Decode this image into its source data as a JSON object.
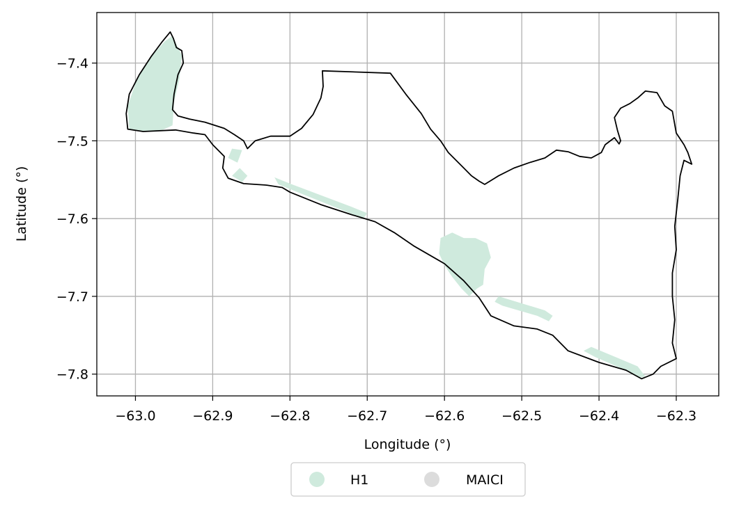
{
  "chart_data": {
    "type": "map",
    "xlabel": "Longitude (°)",
    "ylabel": "Latitude (°)",
    "xlim": [
      -63.05,
      -62.245
    ],
    "ylim": [
      -7.828,
      -7.335
    ],
    "x_ticks": [
      -63.0,
      -62.9,
      -62.8,
      -62.7,
      -62.6,
      -62.5,
      -62.4,
      -62.3
    ],
    "x_tick_labels": [
      "−63.0",
      "−62.9",
      "−62.8",
      "−62.7",
      "−62.6",
      "−62.5",
      "−62.4",
      "−62.3"
    ],
    "y_ticks": [
      -7.4,
      -7.5,
      -7.6,
      -7.7,
      -7.8
    ],
    "y_tick_labels": [
      "−7.4",
      "−7.5",
      "−7.6",
      "−7.7",
      "−7.8"
    ],
    "grid": true,
    "legend_position": "bottom-center-outside",
    "legend": [
      {
        "name": "H1",
        "color": "#cfeadd"
      },
      {
        "name": "MAICI",
        "color": "#dcdcdc"
      }
    ],
    "boundary_color": "#000000",
    "boundary": [
      [
        -63.01,
        -7.485
      ],
      [
        -63.012,
        -7.465
      ],
      [
        -63.008,
        -7.44
      ],
      [
        -62.995,
        -7.415
      ],
      [
        -62.98,
        -7.392
      ],
      [
        -62.965,
        -7.372
      ],
      [
        -62.955,
        -7.36
      ],
      [
        -62.951,
        -7.368
      ],
      [
        -62.947,
        -7.38
      ],
      [
        -62.94,
        -7.384
      ],
      [
        -62.938,
        -7.4
      ],
      [
        -62.945,
        -7.415
      ],
      [
        -62.95,
        -7.44
      ],
      [
        -62.952,
        -7.46
      ],
      [
        -62.945,
        -7.468
      ],
      [
        -62.93,
        -7.472
      ],
      [
        -62.91,
        -7.476
      ],
      [
        -62.885,
        -7.484
      ],
      [
        -62.872,
        -7.492
      ],
      [
        -62.86,
        -7.5
      ],
      [
        -62.855,
        -7.51
      ],
      [
        -62.845,
        -7.5
      ],
      [
        -62.825,
        -7.494
      ],
      [
        -62.8,
        -7.494
      ],
      [
        -62.785,
        -7.484
      ],
      [
        -62.77,
        -7.466
      ],
      [
        -62.76,
        -7.445
      ],
      [
        -62.757,
        -7.43
      ],
      [
        -62.758,
        -7.41
      ],
      [
        -62.67,
        -7.413
      ],
      [
        -62.65,
        -7.44
      ],
      [
        -62.63,
        -7.465
      ],
      [
        -62.618,
        -7.485
      ],
      [
        -62.605,
        -7.5
      ],
      [
        -62.595,
        -7.515
      ],
      [
        -62.585,
        -7.525
      ],
      [
        -62.575,
        -7.535
      ],
      [
        -62.565,
        -7.545
      ],
      [
        -62.555,
        -7.552
      ],
      [
        -62.548,
        -7.556
      ],
      [
        -62.53,
        -7.545
      ],
      [
        -62.51,
        -7.535
      ],
      [
        -62.49,
        -7.528
      ],
      [
        -62.47,
        -7.522
      ],
      [
        -62.455,
        -7.512
      ],
      [
        -62.44,
        -7.514
      ],
      [
        -62.425,
        -7.52
      ],
      [
        -62.41,
        -7.522
      ],
      [
        -62.397,
        -7.515
      ],
      [
        -62.392,
        -7.505
      ],
      [
        -62.38,
        -7.496
      ],
      [
        -62.374,
        -7.504
      ],
      [
        -62.372,
        -7.5
      ],
      [
        -62.376,
        -7.487
      ],
      [
        -62.38,
        -7.47
      ],
      [
        -62.372,
        -7.458
      ],
      [
        -62.36,
        -7.452
      ],
      [
        -62.35,
        -7.445
      ],
      [
        -62.34,
        -7.436
      ],
      [
        -62.325,
        -7.438
      ],
      [
        -62.315,
        -7.455
      ],
      [
        -62.305,
        -7.462
      ],
      [
        -62.3,
        -7.49
      ],
      [
        -62.29,
        -7.505
      ],
      [
        -62.285,
        -7.515
      ],
      [
        -62.28,
        -7.53
      ],
      [
        -62.29,
        -7.525
      ],
      [
        -62.295,
        -7.545
      ],
      [
        -62.298,
        -7.575
      ],
      [
        -62.302,
        -7.61
      ],
      [
        -62.3,
        -7.64
      ],
      [
        -62.305,
        -7.67
      ],
      [
        -62.305,
        -7.7
      ],
      [
        -62.302,
        -7.73
      ],
      [
        -62.305,
        -7.76
      ],
      [
        -62.3,
        -7.78
      ],
      [
        -62.32,
        -7.79
      ],
      [
        -62.33,
        -7.8
      ],
      [
        -62.345,
        -7.806
      ],
      [
        -62.365,
        -7.795
      ],
      [
        -62.4,
        -7.785
      ],
      [
        -62.44,
        -7.77
      ],
      [
        -62.46,
        -7.75
      ],
      [
        -62.48,
        -7.742
      ],
      [
        -62.51,
        -7.738
      ],
      [
        -62.54,
        -7.725
      ],
      [
        -62.555,
        -7.702
      ],
      [
        -62.575,
        -7.68
      ],
      [
        -62.6,
        -7.658
      ],
      [
        -62.64,
        -7.635
      ],
      [
        -62.665,
        -7.618
      ],
      [
        -62.69,
        -7.604
      ],
      [
        -62.72,
        -7.595
      ],
      [
        -62.76,
        -7.582
      ],
      [
        -62.8,
        -7.566
      ],
      [
        -62.81,
        -7.56
      ],
      [
        -62.83,
        -7.557
      ],
      [
        -62.86,
        -7.555
      ],
      [
        -62.88,
        -7.548
      ],
      [
        -62.887,
        -7.535
      ],
      [
        -62.885,
        -7.52
      ],
      [
        -62.9,
        -7.505
      ],
      [
        -62.91,
        -7.492
      ],
      [
        -62.925,
        -7.49
      ],
      [
        -62.948,
        -7.486
      ],
      [
        -62.99,
        -7.488
      ],
      [
        -63.01,
        -7.485
      ]
    ],
    "h1_regions": [
      [
        [
          -63.008,
          -7.485
        ],
        [
          -63.01,
          -7.455
        ],
        [
          -62.998,
          -7.42
        ],
        [
          -62.98,
          -7.392
        ],
        [
          -62.962,
          -7.372
        ],
        [
          -62.952,
          -7.365
        ],
        [
          -62.945,
          -7.38
        ],
        [
          -62.94,
          -7.39
        ],
        [
          -62.943,
          -7.42
        ],
        [
          -62.95,
          -7.45
        ],
        [
          -62.952,
          -7.48
        ],
        [
          -62.965,
          -7.486
        ],
        [
          -62.99,
          -7.488
        ]
      ],
      [
        [
          -62.605,
          -7.625
        ],
        [
          -62.59,
          -7.618
        ],
        [
          -62.575,
          -7.625
        ],
        [
          -62.56,
          -7.625
        ],
        [
          -62.545,
          -7.632
        ],
        [
          -62.54,
          -7.65
        ],
        [
          -62.548,
          -7.665
        ],
        [
          -62.55,
          -7.685
        ],
        [
          -62.558,
          -7.69
        ],
        [
          -62.568,
          -7.7
        ],
        [
          -62.578,
          -7.69
        ],
        [
          -62.59,
          -7.675
        ],
        [
          -62.6,
          -7.66
        ],
        [
          -62.607,
          -7.645
        ]
      ],
      [
        [
          -62.82,
          -7.547
        ],
        [
          -62.8,
          -7.555
        ],
        [
          -62.72,
          -7.585
        ],
        [
          -62.7,
          -7.593
        ],
        [
          -62.705,
          -7.6
        ],
        [
          -62.725,
          -7.592
        ],
        [
          -62.8,
          -7.562
        ],
        [
          -62.815,
          -7.556
        ]
      ],
      [
        [
          -62.53,
          -7.7
        ],
        [
          -62.52,
          -7.703
        ],
        [
          -62.47,
          -7.718
        ],
        [
          -62.46,
          -7.725
        ],
        [
          -62.465,
          -7.732
        ],
        [
          -62.48,
          -7.725
        ],
        [
          -62.525,
          -7.712
        ],
        [
          -62.535,
          -7.707
        ]
      ],
      [
        [
          -62.41,
          -7.765
        ],
        [
          -62.35,
          -7.79
        ],
        [
          -62.34,
          -7.803
        ],
        [
          -62.348,
          -7.805
        ],
        [
          -62.37,
          -7.793
        ],
        [
          -62.405,
          -7.778
        ],
        [
          -62.42,
          -7.77
        ]
      ],
      [
        [
          -62.875,
          -7.51
        ],
        [
          -62.862,
          -7.512
        ],
        [
          -62.868,
          -7.528
        ],
        [
          -62.88,
          -7.522
        ]
      ],
      [
        [
          -62.875,
          -7.545
        ],
        [
          -62.865,
          -7.535
        ],
        [
          -62.855,
          -7.545
        ],
        [
          -62.862,
          -7.553
        ]
      ]
    ]
  },
  "legend_items": [
    {
      "label": "H1"
    },
    {
      "label": "MAICI"
    }
  ]
}
